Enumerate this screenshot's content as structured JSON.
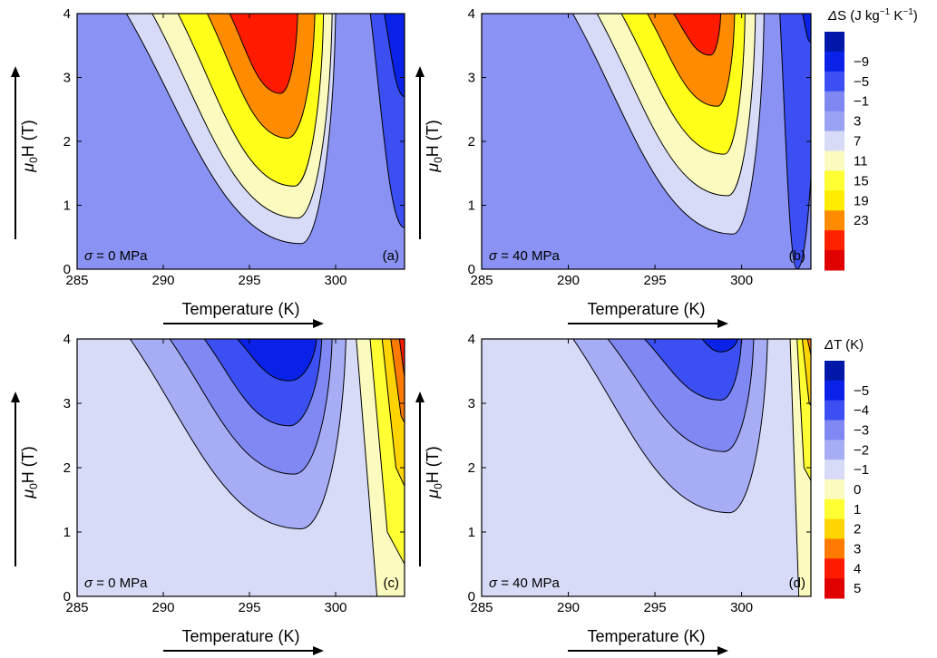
{
  "chart_data": [
    {
      "id": "a",
      "type": "contour",
      "panel_label": "(a)",
      "quantity": "ΔS (J kg⁻¹ K⁻¹)",
      "annotation_symbol": "σ",
      "annotation_value": " = 0 MPa",
      "xlabel": "Temperature (K)",
      "ylabel_mu": "μ",
      "ylabel_sub": "0",
      "ylabel_rest": "H (T)",
      "xlim": [
        285,
        304
      ],
      "ylim": [
        0,
        4
      ],
      "xticks": [
        "285",
        "290",
        "295",
        "300"
      ],
      "yticks": [
        "0",
        "1",
        "2",
        "3",
        "4"
      ],
      "background_level": 3,
      "contours": [
        {
          "level": 7,
          "tip_T": 298.0,
          "tip_H": 0.4,
          "left_T": 287.8,
          "right_T": 300.0,
          "max": false
        },
        {
          "level": 11,
          "tip_T": 297.8,
          "tip_H": 0.8,
          "left_T": 289.3,
          "right_T": 299.8,
          "max": false
        },
        {
          "level": 15,
          "tip_T": 297.6,
          "tip_H": 1.3,
          "left_T": 290.8,
          "right_T": 299.3,
          "max": false
        },
        {
          "level": 19,
          "tip_T": 297.2,
          "tip_H": 2.05,
          "left_T": 292.5,
          "right_T": 298.8,
          "max": false
        },
        {
          "level": 23,
          "tip_T": 296.8,
          "tip_H": 2.75,
          "left_T": 293.8,
          "right_T": 297.8,
          "max": false
        },
        {
          "level": -1,
          "tip_T": 304.0,
          "tip_H": 0.65,
          "left_T": 302.0,
          "right_T": 304.3,
          "max": false
        },
        {
          "level": -5,
          "tip_T": 304.0,
          "tip_H": 2.7,
          "left_T": 302.8,
          "right_T": 304.3,
          "max": false
        }
      ]
    },
    {
      "id": "b",
      "type": "contour",
      "panel_label": "(b)",
      "quantity": "ΔS (J kg⁻¹ K⁻¹)",
      "annotation_symbol": "σ",
      "annotation_value": " = 40 MPa",
      "xlabel": "Temperature (K)",
      "ylabel_mu": "μ",
      "ylabel_sub": "0",
      "ylabel_rest": "H (T)",
      "xlim": [
        285,
        304
      ],
      "ylim": [
        0,
        4
      ],
      "xticks": [
        "285",
        "290",
        "295",
        "300"
      ],
      "yticks": [
        "0",
        "1",
        "2",
        "3",
        "4"
      ],
      "background_level": 3,
      "contours": [
        {
          "level": 7,
          "tip_T": 299.5,
          "tip_H": 0.55,
          "left_T": 290.2,
          "right_T": 301.3,
          "max": false
        },
        {
          "level": 11,
          "tip_T": 299.2,
          "tip_H": 1.15,
          "left_T": 291.6,
          "right_T": 300.8,
          "max": false
        },
        {
          "level": 15,
          "tip_T": 299.0,
          "tip_H": 1.8,
          "left_T": 293.0,
          "right_T": 300.2,
          "max": false
        },
        {
          "level": 19,
          "tip_T": 298.6,
          "tip_H": 2.55,
          "left_T": 294.5,
          "right_T": 299.6,
          "max": false
        },
        {
          "level": 23,
          "tip_T": 298.2,
          "tip_H": 3.35,
          "left_T": 296.0,
          "right_T": 298.8,
          "max": false
        },
        {
          "level": -1,
          "tip_T": 303.2,
          "tip_H": 0.0,
          "left_T": 302.2,
          "right_T": 304.3,
          "max": false
        },
        {
          "level": -5,
          "tip_T": 304.0,
          "tip_H": 3.55,
          "left_T": 303.5,
          "right_T": 304.3,
          "max": false
        }
      ]
    },
    {
      "id": "c",
      "type": "contour",
      "panel_label": "(c)",
      "quantity": "ΔT (K)",
      "annotation_symbol": "σ",
      "annotation_value": " = 0 MPa",
      "xlabel": "Temperature (K)",
      "ylabel_mu": "μ",
      "ylabel_sub": "0",
      "ylabel_rest": "H (T)",
      "xlim": [
        285,
        304
      ],
      "ylim": [
        0,
        4
      ],
      "xticks": [
        "285",
        "290",
        "295",
        "300"
      ],
      "yticks": [
        "0",
        "1",
        "2",
        "3",
        "4"
      ],
      "background_level": 0,
      "contours": [
        {
          "level": -1,
          "tip_T": 298.0,
          "tip_H": 1.05,
          "left_T": 288.0,
          "right_T": 300.6,
          "max": false
        },
        {
          "level": -2,
          "tip_T": 297.6,
          "tip_H": 1.9,
          "left_T": 290.3,
          "right_T": 299.8,
          "max": false
        },
        {
          "level": -3,
          "tip_T": 297.3,
          "tip_H": 2.65,
          "left_T": 292.3,
          "right_T": 299.2,
          "max": false
        },
        {
          "level": -4,
          "tip_T": 297.3,
          "tip_H": 3.35,
          "left_T": 294.2,
          "right_T": 298.9,
          "max": false
        }
      ],
      "positive_region": {
        "bands": [
          1,
          2,
          3,
          4,
          5
        ],
        "boundaries": [
          [
            [
              301.2,
              4.0
            ],
            [
              302.4,
              0.0
            ]
          ],
          [
            [
              302.0,
              4.0
            ],
            [
              303.0,
              1.0
            ],
            [
              304.2,
              0.4
            ]
          ],
          [
            [
              302.7,
              4.0
            ],
            [
              303.5,
              2.0
            ],
            [
              304.2,
              1.6
            ]
          ],
          [
            [
              303.2,
              4.0
            ],
            [
              303.8,
              2.8
            ],
            [
              304.2,
              2.6
            ]
          ],
          [
            [
              303.7,
              4.0
            ],
            [
              304.0,
              3.4
            ],
            [
              304.2,
              3.3
            ]
          ]
        ]
      }
    },
    {
      "id": "d",
      "type": "contour",
      "panel_label": "(d)",
      "quantity": "ΔT (K)",
      "annotation_symbol": "σ",
      "annotation_value": " = 40 MPa",
      "xlabel": "Temperature (K)",
      "ylabel_mu": "μ",
      "ylabel_sub": "0",
      "ylabel_rest": "H (T)",
      "xlim": [
        285,
        304
      ],
      "ylim": [
        0,
        4
      ],
      "xticks": [
        "285",
        "290",
        "295",
        "300"
      ],
      "yticks": [
        "0",
        "1",
        "2",
        "3",
        "4"
      ],
      "background_level": 0,
      "contours": [
        {
          "level": -1,
          "tip_T": 299.3,
          "tip_H": 1.3,
          "left_T": 290.2,
          "right_T": 301.5,
          "max": false
        },
        {
          "level": -2,
          "tip_T": 299.0,
          "tip_H": 2.25,
          "left_T": 292.2,
          "right_T": 300.7,
          "max": false
        },
        {
          "level": -3,
          "tip_T": 298.8,
          "tip_H": 3.05,
          "left_T": 294.3,
          "right_T": 300.0,
          "max": false
        },
        {
          "level": -4,
          "tip_T": 298.8,
          "tip_H": 3.8,
          "left_T": 297.6,
          "right_T": 299.8,
          "max": false
        }
      ],
      "positive_region": {
        "bands": [
          1,
          2,
          3,
          4,
          5
        ],
        "boundaries": [
          [
            [
              302.8,
              4.0
            ],
            [
              303.3,
              0.0
            ]
          ],
          [
            [
              303.2,
              4.0
            ],
            [
              303.6,
              2.0
            ],
            [
              304.2,
              1.7
            ]
          ],
          [
            [
              303.5,
              4.0
            ],
            [
              303.9,
              3.0
            ],
            [
              304.2,
              2.9
            ]
          ],
          [
            [
              303.8,
              4.0
            ],
            [
              304.2,
              3.5
            ]
          ],
          [
            [
              304.05,
              4.0
            ],
            [
              304.2,
              3.85
            ]
          ]
        ]
      }
    }
  ],
  "colorbars": [
    {
      "id": "dS",
      "quantity_symbol": "Δ",
      "quantity_rest": "S (J kg",
      "unit_tail_1": "−1",
      "unit_mid": " K",
      "unit_tail_2": "−1",
      "unit_close": ")",
      "labels": [
        "−9",
        "−5",
        "−1",
        "3",
        "7",
        "11",
        "15",
        "19",
        "23"
      ],
      "colors": [
        "#0018a8",
        "#0a22e8",
        "#3b4ff2",
        "#7e87f2",
        "#9aa2f4",
        "#d8dbf8",
        "#fbfbc0",
        "#ffff33",
        "#ffec00",
        "#ff8c00",
        "#ff2200",
        "#e00000"
      ]
    },
    {
      "id": "dT",
      "quantity_symbol": "Δ",
      "quantity_rest": "T (K)",
      "labels": [
        "−5",
        "−4",
        "−3",
        "−2",
        "−1",
        "0",
        "1",
        "2",
        "3",
        "4",
        "5"
      ],
      "colors": [
        "#0018a8",
        "#0a22e8",
        "#3b4ff2",
        "#7f88f3",
        "#a7adf5",
        "#d8dbf8",
        "#fbfbc0",
        "#ffff33",
        "#ffd400",
        "#ff7a00",
        "#ff1a00",
        "#e00000"
      ]
    }
  ],
  "level_colors": {
    "dS": {
      "-9": "#0018a8",
      "-5": "#0a22e8",
      "-1": "#3b4ff2",
      "3": "#8a92f3",
      "7": "#d8dbf8",
      "11": "#fbfbc0",
      "15": "#ffff1a",
      "19": "#ff8c00",
      "23": "#ff1a00"
    },
    "dT": {
      "-5": "#0018a8",
      "-4": "#0a22e8",
      "-3": "#3b4ff2",
      "-2": "#7f88f3",
      "-1": "#a7adf5",
      "0": "#d8dbf8",
      "1": "#fbfbc0",
      "2": "#ffff33",
      "3": "#ffd400",
      "4": "#ff7a00",
      "5": "#ff1a00"
    }
  }
}
